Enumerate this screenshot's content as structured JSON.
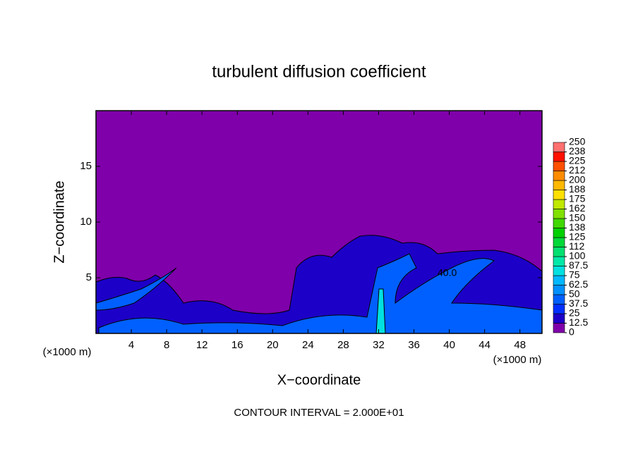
{
  "chart_data": {
    "type": "contour",
    "title": "turbulent diffusion coefficient",
    "xlabel": "X−coordinate",
    "ylabel": "Z−coordinate",
    "x_unit": "(×1000 m)",
    "y_unit": "(×1000 m)",
    "footer": "CONTOUR INTERVAL = 2.000E+01",
    "contour_label": "40.0",
    "xlim": [
      0,
      50.5
    ],
    "ylim": [
      0,
      20
    ],
    "xticks": [
      4,
      8,
      12,
      16,
      20,
      24,
      28,
      32,
      36,
      40,
      44,
      48
    ],
    "yticks": [
      5,
      10,
      15
    ],
    "background_color": "#7f00aa",
    "colorbar": {
      "ticks": [
        0,
        12.5,
        25,
        37.5,
        50,
        62.5,
        75,
        87.5,
        100,
        {
          "value": 112.5,
          "label": "112"
        },
        125,
        {
          "value": 137.5,
          "label": "138"
        },
        150,
        {
          "value": 162.5,
          "label": "162"
        },
        175,
        {
          "value": 187.5,
          "label": "188"
        },
        200,
        {
          "value": 212.5,
          "label": "212"
        },
        225,
        {
          "value": 237.5,
          "label": "238"
        },
        250
      ],
      "colors": [
        "#7f00aa",
        "#1c00c8",
        "#0030ff",
        "#0060ff",
        "#0090ff",
        "#00b8ff",
        "#00e0e0",
        "#00e8a8",
        "#00e070",
        "#00d838",
        "#00d000",
        "#40d800",
        "#80e000",
        "#c0e800",
        "#ffe000",
        "#ffb800",
        "#ff8c00",
        "#ff5000",
        "#ff1000",
        "#ff7070"
      ]
    }
  }
}
